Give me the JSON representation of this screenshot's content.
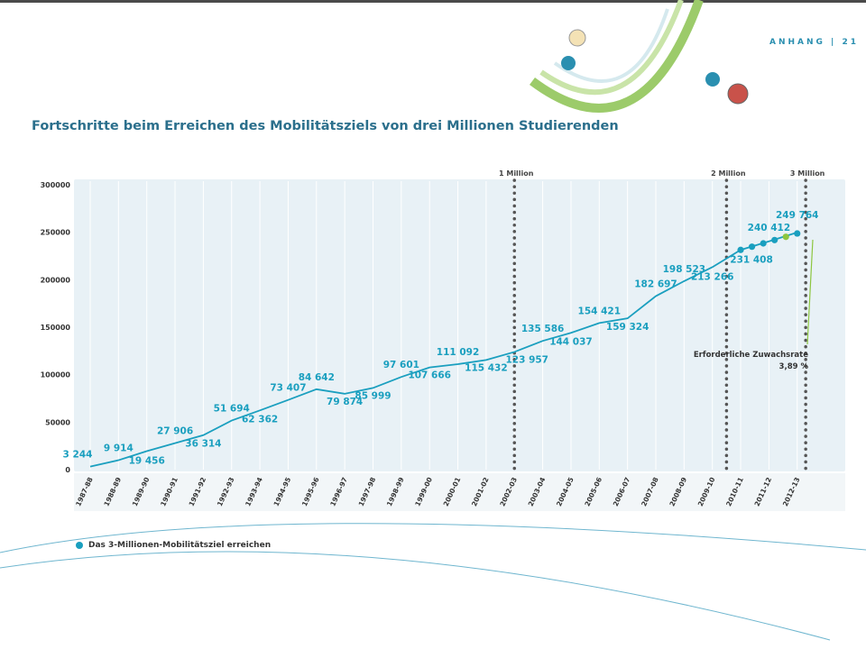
{
  "header": {
    "page_label": "ANHANG | 21"
  },
  "title": "Fortschritte beim Erreichen des Mobilitätsziels von drei Millionen Studierenden",
  "legend": {
    "label": "Das 3-Millionen-Mobilitätsziel erreichen"
  },
  "annotation": {
    "line1": "Erforderliche Zuwachsrate",
    "line2": "3,89 %"
  },
  "colors": {
    "line": "#1a9fbf",
    "text": "#1a9fbf",
    "panel": "#e8f1f6",
    "green": "#8dc63f"
  },
  "chart_data": {
    "type": "line",
    "title": "Fortschritte beim Erreichen des Mobilitätsziels von drei Millionen Studierenden",
    "xlabel": "",
    "ylabel": "",
    "ylim": [
      0,
      300000
    ],
    "yticks": [
      0,
      50000,
      100000,
      150000,
      200000,
      250000,
      300000
    ],
    "ytick_labels": [
      "0",
      "50000",
      "100000",
      "150000",
      "200000",
      "250000",
      "300000"
    ],
    "grid": true,
    "categories": [
      "1987-88",
      "1988-89",
      "1989-90",
      "1990-91",
      "1991-92",
      "1992-93",
      "1993-94",
      "1994-95",
      "1995-96",
      "1996-97",
      "1997-98",
      "1998-99",
      "1999-00",
      "2000-01",
      "2001-02",
      "2002-03",
      "2003-04",
      "2004-05",
      "2005-06",
      "2006-07",
      "2007-08",
      "2008-09",
      "2009-10",
      "2010-11",
      "2011-12",
      "2012-13"
    ],
    "series": [
      {
        "name": "",
        "values": [
          3244,
          9914,
          19456,
          27906,
          36314,
          51694,
          62362,
          73407,
          84642,
          79874,
          85999,
          97601,
          107666,
          111092,
          115432,
          123957,
          135586,
          144037,
          154421,
          159324,
          182697,
          198523,
          213266,
          231408,
          240412,
          249764
        ],
        "labels": [
          "3 244",
          "9 914",
          "19 456",
          "27 906",
          "36 314",
          "51 694",
          "62 362",
          "73 407",
          "84 642",
          "79 874",
          "85 999",
          "97 601",
          "107 666",
          "111 092",
          "115 432",
          "123 957",
          "135 586",
          "144 037",
          "154 421",
          "159 324",
          "182 697",
          "198 523",
          "213 266",
          "231 408",
          "240 412",
          "249 764"
        ]
      }
    ],
    "target_series": {
      "name": "Das 3-Millionen-Mobilitätsziel erreichen",
      "x": [
        23.0,
        23.4,
        23.8,
        24.2,
        24.6,
        25.0
      ],
      "values": [
        231408,
        234800,
        238300,
        241800,
        245200,
        248700
      ]
    },
    "milestones": [
      {
        "label": "1 Million",
        "x": 15.0
      },
      {
        "label": "2 Million",
        "x": 22.5
      },
      {
        "label": "3 Million",
        "x": 25.3
      }
    ]
  }
}
